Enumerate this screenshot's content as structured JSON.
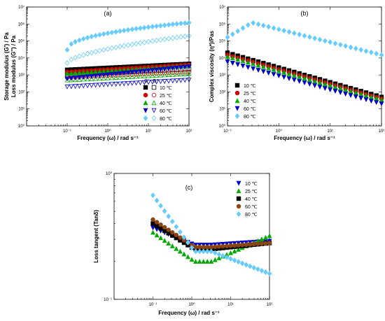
{
  "chart_data": [
    {
      "panel": "(a)",
      "type": "scatter",
      "xlabel": "Frequency (ω) / rad s⁻¹",
      "ylabel": "Storage modulus (G') / Pa\nLoss modulus (G'') / Pa",
      "ylabel_lines": [
        "Storage modulus (G') / Pa",
        "Loss modulus (G'') / Pa"
      ],
      "xscale": "log",
      "yscale": "log",
      "xlim": [
        0.01,
        100
      ],
      "ylim": [
        1,
        10000000
      ],
      "xticks": [
        "10⁻¹",
        "10⁰",
        "10¹",
        "10²"
      ],
      "yticks": [
        "10⁰",
        "10¹",
        "10²",
        "10³",
        "10⁴",
        "10⁵",
        "10⁶",
        "10⁷"
      ],
      "legend_header": [
        "G'",
        "G''"
      ],
      "legend_position": "bottom-right",
      "series": [
        {
          "name": "10 ℃",
          "color": "#000000",
          "Gp": [
            2000,
            4500
          ],
          "Gpp": [
            1000,
            2200
          ]
        },
        {
          "name": "25 ℃",
          "color": "#cc0000",
          "Gp": [
            1500,
            4000
          ],
          "Gpp": [
            700,
            1500
          ]
        },
        {
          "name": "40 ℃",
          "color": "#00aa00",
          "Gp": [
            1200,
            3500
          ],
          "Gpp": [
            500,
            1200
          ]
        },
        {
          "name": "60 ℃",
          "color": "#0000cc",
          "Gp": [
            600,
            3000
          ],
          "Gpp": [
            200,
            500
          ]
        },
        {
          "name": "80 ℃",
          "color": "#66ccff",
          "Gp": [
            30000,
            1200000
          ],
          "Gpp": [
            5000,
            200000
          ]
        }
      ]
    },
    {
      "panel": "(b)",
      "type": "scatter",
      "xlabel": "Frequency (ω) / rad s⁻¹",
      "ylabel": "Complex viscosity (η*)/Pas",
      "xscale": "log",
      "yscale": "log",
      "xlim": [
        0.1,
        100
      ],
      "ylim": [
        1,
        10000000
      ],
      "xticks": [
        "10⁻¹",
        "10⁰",
        "10¹",
        "10²"
      ],
      "yticks": [
        "10⁰",
        "10¹",
        "10²",
        "10³",
        "10⁴",
        "10⁵",
        "10⁶",
        "10⁷"
      ],
      "legend_position": "bottom-left",
      "series": [
        {
          "name": "10 ℃",
          "color": "#000000",
          "marker": "square",
          "start": 20000,
          "end": 50
        },
        {
          "name": "25 ℃",
          "color": "#cc0000",
          "marker": "circle",
          "start": 15000,
          "end": 40
        },
        {
          "name": "40 ℃",
          "color": "#00aa00",
          "marker": "triangle-up",
          "start": 12000,
          "end": 35
        },
        {
          "name": "60 ℃",
          "color": "#0000cc",
          "marker": "triangle-down",
          "start": 6000,
          "end": 20
        },
        {
          "name": "80 ℃",
          "color": "#66ccff",
          "marker": "diamond",
          "peak": 1200000,
          "end": 15000
        }
      ]
    },
    {
      "panel": "(c)",
      "type": "scatter",
      "xlabel": "Frequency (ω) / rad s⁻¹",
      "ylabel": "Loss tangent (Tanδ)",
      "xscale": "log",
      "yscale": "log",
      "xlim": [
        0.01,
        100
      ],
      "ylim": [
        0.1,
        1
      ],
      "xticks": [
        "10⁻¹",
        "10⁰",
        "10¹",
        "10²"
      ],
      "yticks": [
        "10⁻¹",
        "10⁰"
      ],
      "legend_position": "top-right",
      "series": [
        {
          "name": "10 ℃",
          "color": "#0000cc",
          "marker": "triangle-down",
          "start": 0.37,
          "mid": 0.27,
          "end": 0.29
        },
        {
          "name": "25 ℃",
          "color": "#00aa00",
          "marker": "triangle-up",
          "start": 0.34,
          "mid": 0.2,
          "end": 0.32
        },
        {
          "name": "40 ℃",
          "color": "#000000",
          "marker": "square",
          "start": 0.4,
          "mid": 0.25,
          "end": 0.28
        },
        {
          "name": "60 ℃",
          "color": "#8b4513",
          "marker": "circle",
          "start": 0.43,
          "mid": 0.26,
          "end": 0.28
        },
        {
          "name": "80 ℃",
          "color": "#66ccff",
          "marker": "diamond",
          "start": 0.67,
          "mid": 0.24,
          "end": 0.16
        }
      ]
    }
  ]
}
